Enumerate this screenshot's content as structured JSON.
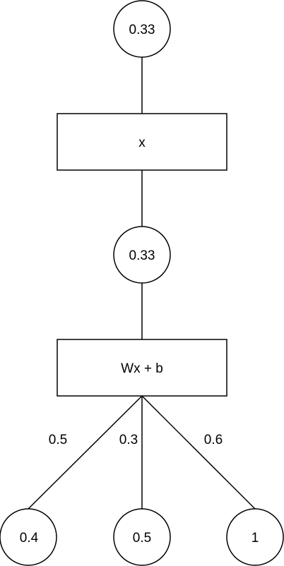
{
  "diagram": {
    "nodes": {
      "output_circle": {
        "label": "0.33",
        "shape": "circle"
      },
      "x_box": {
        "label": "x",
        "shape": "rect"
      },
      "middle_circle": {
        "label": "0.33",
        "shape": "circle"
      },
      "linear_box": {
        "label": "Wx + b",
        "shape": "rect"
      },
      "input_left": {
        "label": "0.4",
        "shape": "circle"
      },
      "input_center": {
        "label": "0.5",
        "shape": "circle"
      },
      "input_right": {
        "label": "1",
        "shape": "circle"
      }
    },
    "edges": {
      "output_to_x": {
        "from": "output_circle",
        "to": "x_box"
      },
      "x_to_middle": {
        "from": "x_box",
        "to": "middle_circle"
      },
      "middle_to_linear": {
        "from": "middle_circle",
        "to": "linear_box"
      },
      "linear_to_left": {
        "from": "linear_box",
        "to": "input_left",
        "weight": "0.5"
      },
      "linear_to_center": {
        "from": "linear_box",
        "to": "input_center",
        "weight": "0.3"
      },
      "linear_to_right": {
        "from": "linear_box",
        "to": "input_right",
        "weight": "0.6"
      }
    },
    "colors": {
      "stroke": "#000000",
      "fill": "#ffffff",
      "text": "#000000"
    }
  }
}
